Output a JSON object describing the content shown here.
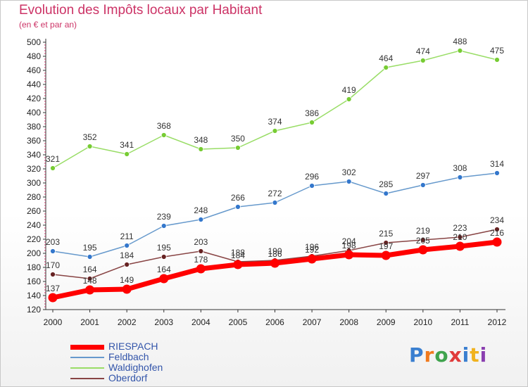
{
  "header": {
    "title": "Evolution des Impôts locaux par Habitant",
    "subtitle": "(en € et par an)"
  },
  "logo": {
    "text": "Proxiti",
    "colors": [
      "#3a7fd0",
      "#f07a1e",
      "#3fa34d",
      "#e03b3b",
      "#3a7fd0",
      "#f0b21e",
      "#8a3fb0"
    ]
  },
  "chart_data": {
    "type": "line",
    "x": [
      "2000",
      "2001",
      "2002",
      "2003",
      "2004",
      "2005",
      "2006",
      "2007",
      "2008",
      "2009",
      "2010",
      "2011",
      "2012"
    ],
    "ylim": [
      120,
      500
    ],
    "yticks": [
      120,
      140,
      160,
      180,
      200,
      220,
      240,
      260,
      280,
      300,
      320,
      340,
      360,
      380,
      400,
      420,
      440,
      460,
      480,
      500
    ],
    "grid": false,
    "legend_position": "bottom-left",
    "series": [
      {
        "name": "Waldighofen",
        "color": "#99dd66",
        "marker_color": "#77cc33",
        "values": [
          321,
          352,
          341,
          368,
          348,
          350,
          374,
          386,
          419,
          464,
          474,
          488,
          475
        ]
      },
      {
        "name": "Feldbach",
        "color": "#6699cc",
        "marker_color": "#3377cc",
        "values": [
          203,
          195,
          211,
          239,
          248,
          266,
          272,
          296,
          302,
          285,
          297,
          308,
          314
        ]
      },
      {
        "name": "Oberdorf",
        "color": "#884444",
        "marker_color": "#662222",
        "values": [
          170,
          164,
          184,
          195,
          203,
          188,
          190,
          196,
          204,
          215,
          219,
          223,
          234
        ]
      },
      {
        "name": "RIESPACH",
        "color": "#ff0000",
        "marker_color": "#ff0000",
        "values": [
          137,
          148,
          149,
          164,
          178,
          184,
          186,
          192,
          198,
          197,
          205,
          210,
          216
        ]
      }
    ],
    "legend_order": [
      "RIESPACH",
      "Feldbach",
      "Waldighofen",
      "Oberdorf"
    ]
  }
}
